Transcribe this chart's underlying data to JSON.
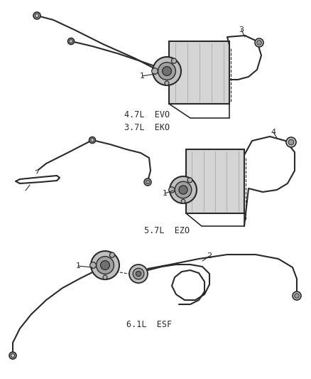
{
  "bg_color": "#ffffff",
  "lc": "#2a2a2a",
  "lc_light": "#888888",
  "lw": 1.5,
  "lw2": 0.8,
  "diagram1_label": "4.7L  EVO\n3.7L  EKO",
  "diagram2_label": "5.7L  EZO",
  "diagram3_label": "6.1L  ESF",
  "n1": "1",
  "n2": "2",
  "n3": "3",
  "n4": "4",
  "fontsize_label": 8.5,
  "fontsize_num": 8
}
